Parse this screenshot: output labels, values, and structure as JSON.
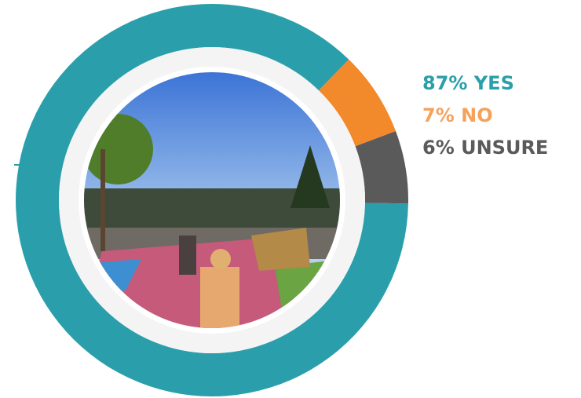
{
  "chart_data": {
    "type": "pie",
    "categories": [
      "87% YES",
      "7% NO",
      "6% UNSURE"
    ],
    "values": [
      87,
      7,
      6
    ],
    "colors": [
      "#2a9fab",
      "#f2892a",
      "#5a5a5a"
    ]
  }
}
